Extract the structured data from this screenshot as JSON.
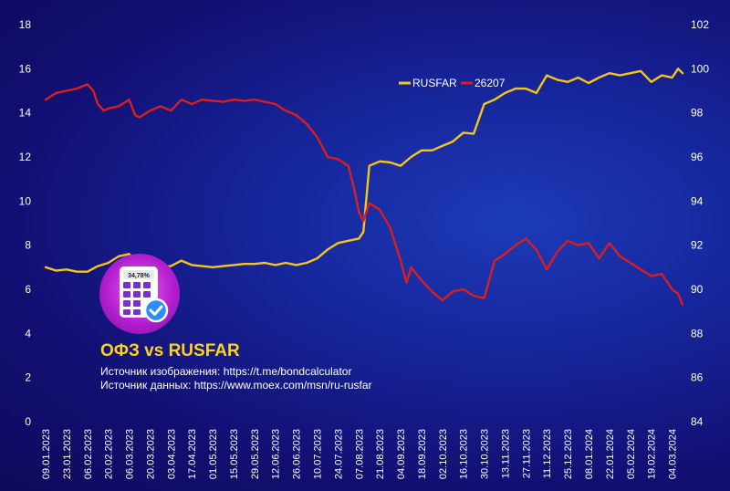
{
  "chart_data": {
    "type": "line",
    "legend": {
      "position": "top-right",
      "entries": [
        "RUSFAR",
        "26207"
      ]
    },
    "left_axis": {
      "min": 0,
      "max": 18,
      "ticks": [
        0,
        2,
        4,
        6,
        8,
        10,
        12,
        14,
        16,
        18
      ]
    },
    "right_axis": {
      "min": 84,
      "max": 102,
      "ticks": [
        84,
        86,
        88,
        90,
        92,
        94,
        96,
        98,
        100,
        102
      ]
    },
    "x_labels": [
      "09.01.2023",
      "23.01.2023",
      "06.02.2023",
      "20.02.2023",
      "06.03.2023",
      "20.03.2023",
      "03.04.2023",
      "17.04.2023",
      "01.05.2023",
      "15.05.2023",
      "29.05.2023",
      "12.06.2023",
      "26.06.2023",
      "10.07.2023",
      "24.07.2023",
      "07.08.2023",
      "21.08.2023",
      "04.09.2023",
      "18.09.2023",
      "02.10.2023",
      "16.10.2023",
      "30.10.2023",
      "13.11.2023",
      "27.11.2023",
      "11.12.2023",
      "25.12.2023",
      "08.01.2024",
      "22.01.2024",
      "05.02.2024",
      "19.02.2024",
      "04.03.2024"
    ],
    "x_start": "09.01.2023",
    "x_end": "11.03.2024",
    "grid": false,
    "series": [
      {
        "name": "RUSFAR",
        "axis": "left",
        "color": "#f5c518",
        "points": [
          [
            "09.01.2023",
            7.0
          ],
          [
            "16.01.2023",
            6.85
          ],
          [
            "23.01.2023",
            6.9
          ],
          [
            "30.01.2023",
            6.8
          ],
          [
            "06.02.2023",
            6.8
          ],
          [
            "13.02.2023",
            7.05
          ],
          [
            "20.02.2023",
            7.2
          ],
          [
            "27.02.2023",
            7.5
          ],
          [
            "06.03.2023",
            7.6
          ],
          [
            "13.03.2023",
            7.1
          ],
          [
            "20.03.2023",
            7.1
          ],
          [
            "27.03.2023",
            7.0
          ],
          [
            "03.04.2023",
            7.05
          ],
          [
            "10.04.2023",
            7.3
          ],
          [
            "17.04.2023",
            7.1
          ],
          [
            "24.04.2023",
            7.05
          ],
          [
            "01.05.2023",
            7.0
          ],
          [
            "08.05.2023",
            7.05
          ],
          [
            "15.05.2023",
            7.1
          ],
          [
            "22.05.2023",
            7.15
          ],
          [
            "29.05.2023",
            7.15
          ],
          [
            "05.06.2023",
            7.2
          ],
          [
            "12.06.2023",
            7.1
          ],
          [
            "19.06.2023",
            7.2
          ],
          [
            "26.06.2023",
            7.1
          ],
          [
            "03.07.2023",
            7.2
          ],
          [
            "10.07.2023",
            7.4
          ],
          [
            "17.07.2023",
            7.8
          ],
          [
            "24.07.2023",
            8.1
          ],
          [
            "31.07.2023",
            8.2
          ],
          [
            "07.08.2023",
            8.3
          ],
          [
            "10.08.2023",
            8.6
          ],
          [
            "14.08.2023",
            11.6
          ],
          [
            "21.08.2023",
            11.8
          ],
          [
            "28.08.2023",
            11.75
          ],
          [
            "04.09.2023",
            11.6
          ],
          [
            "11.09.2023",
            12.0
          ],
          [
            "18.09.2023",
            12.3
          ],
          [
            "25.09.2023",
            12.3
          ],
          [
            "02.10.2023",
            12.5
          ],
          [
            "09.10.2023",
            12.7
          ],
          [
            "16.10.2023",
            13.1
          ],
          [
            "23.10.2023",
            13.05
          ],
          [
            "30.10.2023",
            14.4
          ],
          [
            "06.11.2023",
            14.6
          ],
          [
            "13.11.2023",
            14.9
          ],
          [
            "20.11.2023",
            15.1
          ],
          [
            "27.11.2023",
            15.1
          ],
          [
            "04.12.2023",
            14.9
          ],
          [
            "11.12.2023",
            15.7
          ],
          [
            "18.12.2023",
            15.5
          ],
          [
            "25.12.2023",
            15.4
          ],
          [
            "01.01.2024",
            15.6
          ],
          [
            "08.01.2024",
            15.35
          ],
          [
            "15.01.2024",
            15.6
          ],
          [
            "22.01.2024",
            15.8
          ],
          [
            "29.01.2024",
            15.7
          ],
          [
            "05.02.2024",
            15.8
          ],
          [
            "12.02.2024",
            15.9
          ],
          [
            "19.02.2024",
            15.4
          ],
          [
            "26.02.2024",
            15.7
          ],
          [
            "04.03.2024",
            15.6
          ],
          [
            "08.03.2024",
            16.0
          ],
          [
            "11.03.2024",
            15.8
          ]
        ]
      },
      {
        "name": "26207",
        "axis": "right",
        "color": "#d81e1e",
        "points": [
          [
            "09.01.2023",
            98.6
          ],
          [
            "16.01.2023",
            98.9
          ],
          [
            "23.01.2023",
            99.0
          ],
          [
            "30.01.2023",
            99.1
          ],
          [
            "06.02.2023",
            99.3
          ],
          [
            "10.02.2023",
            99.0
          ],
          [
            "13.02.2023",
            98.4
          ],
          [
            "17.02.2023",
            98.1
          ],
          [
            "20.02.2023",
            98.2
          ],
          [
            "27.02.2023",
            98.3
          ],
          [
            "06.03.2023",
            98.6
          ],
          [
            "10.03.2023",
            97.9
          ],
          [
            "13.03.2023",
            97.8
          ],
          [
            "20.03.2023",
            98.1
          ],
          [
            "27.03.2023",
            98.3
          ],
          [
            "03.04.2023",
            98.1
          ],
          [
            "10.04.2023",
            98.6
          ],
          [
            "17.04.2023",
            98.4
          ],
          [
            "24.04.2023",
            98.6
          ],
          [
            "01.05.2023",
            98.55
          ],
          [
            "08.05.2023",
            98.5
          ],
          [
            "15.05.2023",
            98.6
          ],
          [
            "22.05.2023",
            98.55
          ],
          [
            "29.05.2023",
            98.6
          ],
          [
            "05.06.2023",
            98.5
          ],
          [
            "12.06.2023",
            98.4
          ],
          [
            "19.06.2023",
            98.1
          ],
          [
            "26.06.2023",
            97.9
          ],
          [
            "03.07.2023",
            97.5
          ],
          [
            "10.07.2023",
            96.9
          ],
          [
            "17.07.2023",
            96.0
          ],
          [
            "24.07.2023",
            95.9
          ],
          [
            "31.07.2023",
            95.6
          ],
          [
            "04.08.2023",
            94.5
          ],
          [
            "07.08.2023",
            93.5
          ],
          [
            "10.08.2023",
            93.1
          ],
          [
            "14.08.2023",
            93.9
          ],
          [
            "21.08.2023",
            93.6
          ],
          [
            "28.08.2023",
            92.8
          ],
          [
            "04.09.2023",
            91.3
          ],
          [
            "08.09.2023",
            90.3
          ],
          [
            "11.09.2023",
            91.0
          ],
          [
            "18.09.2023",
            90.4
          ],
          [
            "25.09.2023",
            89.9
          ],
          [
            "02.10.2023",
            89.5
          ],
          [
            "09.10.2023",
            89.9
          ],
          [
            "16.10.2023",
            90.0
          ],
          [
            "23.10.2023",
            89.7
          ],
          [
            "30.10.2023",
            89.6
          ],
          [
            "06.11.2023",
            91.3
          ],
          [
            "13.11.2023",
            91.6
          ],
          [
            "20.11.2023",
            92.0
          ],
          [
            "27.11.2023",
            92.3
          ],
          [
            "04.12.2023",
            91.8
          ],
          [
            "11.12.2023",
            90.9
          ],
          [
            "18.12.2023",
            91.7
          ],
          [
            "25.12.2023",
            92.2
          ],
          [
            "01.01.2024",
            92.0
          ],
          [
            "08.01.2024",
            92.1
          ],
          [
            "15.01.2024",
            91.4
          ],
          [
            "22.01.2024",
            92.1
          ],
          [
            "29.01.2024",
            91.5
          ],
          [
            "05.02.2024",
            91.2
          ],
          [
            "12.02.2024",
            90.9
          ],
          [
            "19.02.2024",
            90.6
          ],
          [
            "26.02.2024",
            90.7
          ],
          [
            "04.03.2024",
            90.0
          ],
          [
            "08.03.2024",
            89.8
          ],
          [
            "11.03.2024",
            89.3
          ]
        ]
      }
    ]
  },
  "brand": {
    "title": "ОФЗ vs RUSFAR",
    "image_source": "Источник изображения: https://t.me/bondcalculator",
    "data_source": "Источник данных: https://www.moex.com/msn/ru-rusfar",
    "badge_value": "34,78%"
  }
}
